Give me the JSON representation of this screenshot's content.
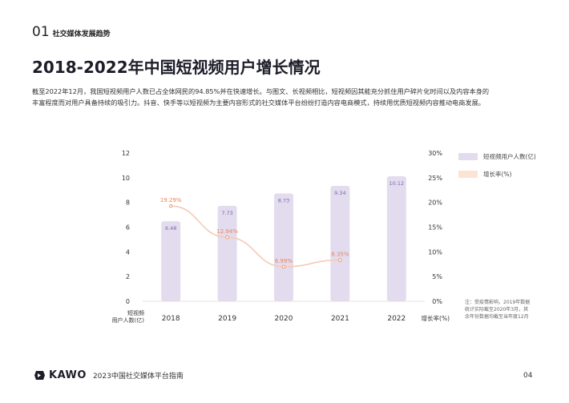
{
  "section": {
    "number": "01",
    "title": "社交媒体发展趋势"
  },
  "page_title": "2018-2022年中国短视频用户增长情况",
  "intro": {
    "line1": "截至2022年12月，我国短视频用户人数已占全体网民的94.85%并在快速增长。与图文、长视频相比，短视频因其能充分抓住用户碎片化时间以及内容本身的",
    "line2": "丰富程度而对用户具备持续的吸引力。抖音、快手等以短视频为主要内容形式的社交媒体平台纷纷打造内容电商模式，持续用优质短视频内容推动电商发展。"
  },
  "legend": {
    "users": "短视频用户人数(亿)",
    "growth": "增长率(%)"
  },
  "note": {
    "line1": "注：受疫情影响，2019年数据",
    "line2": "统计实际截至2020年3月，其",
    "line3": "余年份数据均截至当年度12月"
  },
  "footer": {
    "brand": "KAWO",
    "text": "2023中国社交媒体平台指南",
    "page": "04"
  },
  "chart_data": {
    "type": "bar",
    "categories": [
      "2018",
      "2019",
      "2020",
      "2021",
      "2022"
    ],
    "series": [
      {
        "name": "短视频用户人数(亿)",
        "type": "bar",
        "axis": "left",
        "values": [
          6.48,
          7.73,
          8.73,
          9.34,
          10.12
        ],
        "labels": [
          "6.48",
          "7.73",
          "8.73",
          "9.34",
          "10.12"
        ]
      },
      {
        "name": "增长率(%)",
        "type": "line",
        "axis": "right",
        "x": [
          "2018",
          "2019",
          "2020",
          "2021"
        ],
        "values": [
          19.29,
          12.94,
          6.99,
          8.35
        ],
        "labels": [
          "19.29%",
          "12.94%",
          "6.99%",
          "8.35%"
        ]
      }
    ],
    "y_left": {
      "label": "短视频用户人数(亿)",
      "ticks": [
        "0",
        "2",
        "4",
        "6",
        "8",
        "10",
        "12"
      ],
      "lim": [
        0,
        12
      ]
    },
    "y_right": {
      "label": "增长率(%)",
      "ticks": [
        "0%",
        "5%",
        "10%",
        "15%",
        "20%",
        "25%",
        "30%"
      ],
      "lim": [
        0,
        30
      ]
    },
    "colors": {
      "bar": "#e3dcee",
      "bar_label": "#7c68a8",
      "line": "#f5cbb4",
      "line_label": "#e8855a",
      "axis_text": "#333333"
    },
    "grid": false,
    "legend_position": "right"
  }
}
